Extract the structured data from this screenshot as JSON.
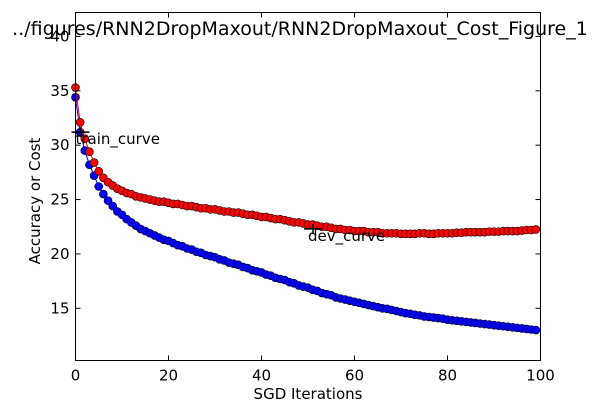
{
  "chart_data": {
    "type": "line",
    "title": "../figures/RNN2DropMaxout/RNN2DropMaxout_Cost_Figure_1",
    "xlabel": "SGD Iterations",
    "ylabel": "Accuracy or Cost",
    "xlim": [
      0,
      100
    ],
    "ylim": [
      10.2,
      42.2
    ],
    "xticks": [
      0,
      20,
      40,
      60,
      80,
      100
    ],
    "yticks": [
      15,
      20,
      25,
      30,
      35,
      40
    ],
    "grid": false,
    "annotations": [
      {
        "text": "train_curve",
        "x": 0,
        "y": 31.2
      },
      {
        "text": "dev_curve",
        "x": 50,
        "y": 22.3
      }
    ],
    "series": [
      {
        "color": "#0000ff",
        "marker": "circle",
        "x": [
          0,
          1,
          2,
          3,
          4,
          5,
          6,
          7,
          8,
          9,
          10,
          11,
          12,
          13,
          14,
          15,
          16,
          17,
          18,
          19,
          20,
          21,
          22,
          23,
          24,
          25,
          26,
          27,
          28,
          29,
          30,
          31,
          32,
          33,
          34,
          35,
          36,
          37,
          38,
          39,
          40,
          41,
          42,
          43,
          44,
          45,
          46,
          47,
          48,
          49,
          50,
          51,
          52,
          53,
          54,
          55,
          56,
          57,
          58,
          59,
          60,
          61,
          62,
          63,
          64,
          65,
          66,
          67,
          68,
          69,
          70,
          71,
          72,
          73,
          74,
          75,
          76,
          77,
          78,
          79,
          80,
          81,
          82,
          83,
          84,
          85,
          86,
          87,
          88,
          89,
          90,
          91,
          92,
          93,
          94,
          95,
          96,
          97,
          98,
          99
        ],
        "y": [
          34.4,
          31.2,
          29.5,
          28.2,
          27.2,
          26.2,
          25.5,
          24.9,
          24.4,
          23.9,
          23.6,
          23.2,
          22.9,
          22.6,
          22.3,
          22.1,
          21.9,
          21.7,
          21.5,
          21.3,
          21.2,
          21.0,
          20.8,
          20.7,
          20.5,
          20.4,
          20.2,
          20.1,
          19.9,
          19.8,
          19.7,
          19.5,
          19.4,
          19.2,
          19.1,
          19.0,
          18.8,
          18.7,
          18.5,
          18.4,
          18.3,
          18.1,
          18.0,
          17.8,
          17.7,
          17.6,
          17.4,
          17.3,
          17.1,
          17.0,
          16.9,
          16.7,
          16.6,
          16.4,
          16.3,
          16.2,
          16.0,
          15.9,
          15.8,
          15.7,
          15.6,
          15.5,
          15.4,
          15.3,
          15.2,
          15.1,
          15.0,
          14.95,
          14.85,
          14.75,
          14.65,
          14.55,
          14.5,
          14.4,
          14.35,
          14.25,
          14.2,
          14.15,
          14.1,
          14.05,
          13.95,
          13.9,
          13.85,
          13.8,
          13.75,
          13.7,
          13.65,
          13.6,
          13.55,
          13.5,
          13.45,
          13.4,
          13.35,
          13.3,
          13.25,
          13.2,
          13.15,
          13.1,
          13.05,
          13.0
        ]
      },
      {
        "color": "#ff0000",
        "marker": "circle",
        "x": [
          0,
          1,
          2,
          3,
          4,
          5,
          6,
          7,
          8,
          9,
          10,
          11,
          12,
          13,
          14,
          15,
          16,
          17,
          18,
          19,
          20,
          21,
          22,
          23,
          24,
          25,
          26,
          27,
          28,
          29,
          30,
          31,
          32,
          33,
          34,
          35,
          36,
          37,
          38,
          39,
          40,
          41,
          42,
          43,
          44,
          45,
          46,
          47,
          48,
          49,
          50,
          51,
          52,
          53,
          54,
          55,
          56,
          57,
          58,
          59,
          60,
          61,
          62,
          63,
          64,
          65,
          66,
          67,
          68,
          69,
          70,
          71,
          72,
          73,
          74,
          75,
          76,
          77,
          78,
          79,
          80,
          81,
          82,
          83,
          84,
          85,
          86,
          87,
          88,
          89,
          90,
          91,
          92,
          93,
          94,
          95,
          96,
          97,
          98,
          99
        ],
        "y": [
          35.3,
          32.1,
          30.6,
          29.4,
          28.4,
          27.6,
          27.0,
          26.6,
          26.3,
          26.0,
          25.8,
          25.6,
          25.5,
          25.3,
          25.2,
          25.1,
          25.0,
          24.9,
          24.8,
          24.8,
          24.7,
          24.6,
          24.6,
          24.5,
          24.4,
          24.4,
          24.3,
          24.2,
          24.2,
          24.1,
          24.1,
          24.0,
          23.9,
          23.9,
          23.8,
          23.8,
          23.7,
          23.6,
          23.6,
          23.5,
          23.4,
          23.4,
          23.3,
          23.2,
          23.2,
          23.1,
          23.0,
          22.9,
          22.9,
          22.8,
          22.7,
          22.7,
          22.6,
          22.5,
          22.5,
          22.4,
          22.3,
          22.3,
          22.2,
          22.2,
          22.1,
          22.1,
          22.1,
          22.0,
          22.0,
          22.0,
          21.9,
          21.9,
          21.9,
          21.9,
          21.85,
          21.85,
          21.85,
          21.85,
          21.9,
          21.9,
          21.85,
          21.85,
          21.9,
          21.9,
          21.9,
          21.9,
          21.95,
          21.95,
          22.0,
          22.0,
          22.0,
          22.0,
          22.0,
          22.05,
          22.05,
          22.05,
          22.1,
          22.1,
          22.1,
          22.1,
          22.15,
          22.2,
          22.2,
          22.25
        ]
      }
    ]
  }
}
